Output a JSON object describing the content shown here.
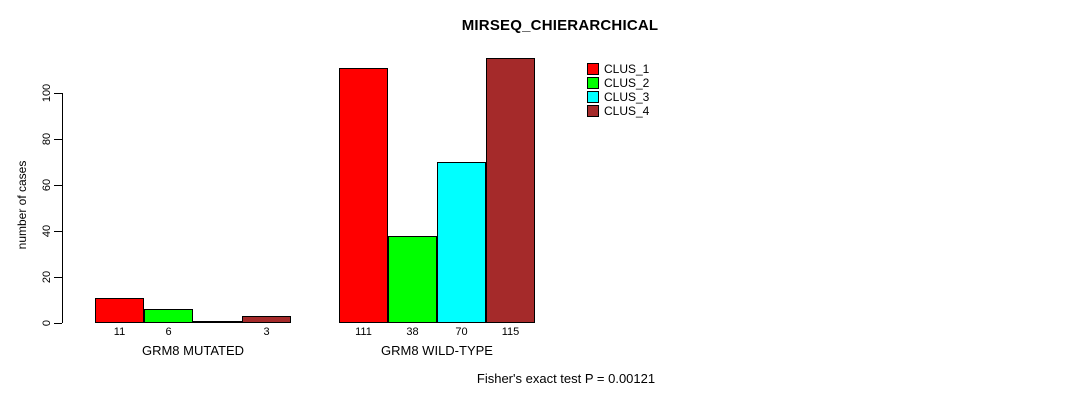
{
  "chart_data": {
    "type": "bar",
    "title": "MIRSEQ_CHIERARCHICAL",
    "ylabel": "number of cases",
    "xlabel": "",
    "ylim": [
      0,
      115
    ],
    "yticks": [
      0,
      20,
      40,
      60,
      80,
      100
    ],
    "grid": false,
    "legend_position": "top-right",
    "bar_border_color": "#000000",
    "series": [
      {
        "name": "CLUS_1",
        "color": "#FF0000"
      },
      {
        "name": "CLUS_2",
        "color": "#00FF00"
      },
      {
        "name": "CLUS_3",
        "color": "#00FFFF"
      },
      {
        "name": "CLUS_4",
        "color": "#A52A2A"
      }
    ],
    "groups": [
      {
        "label": "GRM8 MUTATED",
        "values": [
          11,
          6,
          0,
          3
        ],
        "value_labels": [
          "11",
          "6",
          "",
          "3"
        ]
      },
      {
        "label": "GRM8 WILD-TYPE",
        "values": [
          111,
          38,
          70,
          115
        ],
        "value_labels": [
          "111",
          "38",
          "70",
          "115"
        ]
      }
    ],
    "annotation": "Fisher's exact test P = 0.00121"
  }
}
